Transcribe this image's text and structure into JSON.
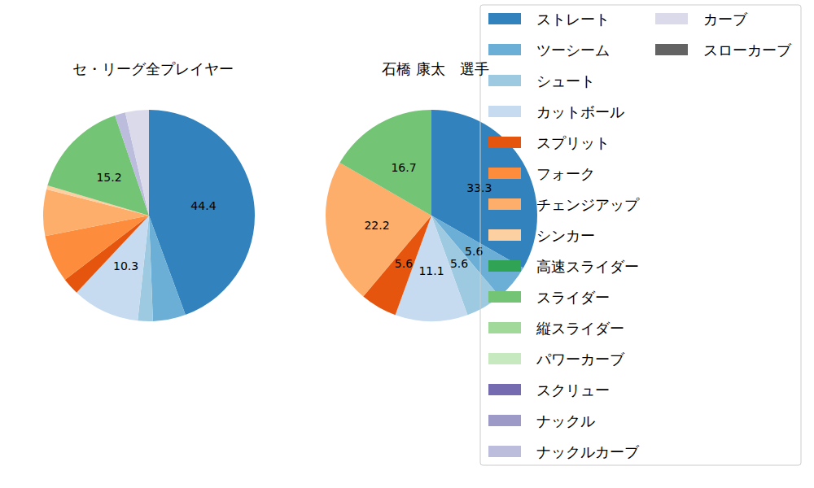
{
  "chart_data": [
    {
      "type": "pie",
      "title": "セ・リーグ全プレイヤー",
      "categories": [
        "ストレート",
        "ツーシーム",
        "シュート",
        "カットボール",
        "スプリット",
        "フォーク",
        "チェンジアップ",
        "シンカー",
        "高速スライダー",
        "スライダー",
        "縦スライダー",
        "パワーカーブ",
        "スクリュー",
        "ナックル",
        "ナックルカーブ",
        "カーブ",
        "スローカーブ"
      ],
      "values": [
        44.4,
        5.0,
        2.3,
        10.3,
        2.6,
        7.3,
        7.1,
        0.6,
        0,
        15.2,
        0,
        0,
        0,
        0,
        1.6,
        3.6,
        0
      ],
      "value_labels": [
        "44.4",
        null,
        null,
        "10.3",
        null,
        null,
        null,
        null,
        null,
        "15.2",
        null,
        null,
        null,
        null,
        null,
        null,
        null
      ],
      "colors": [
        "#3182bd",
        "#6baed6",
        "#9ecae1",
        "#c6dbef",
        "#e6550d",
        "#fd8d3c",
        "#fdae6b",
        "#fdd0a2",
        "#31a354",
        "#74c476",
        "#a1d99b",
        "#c7e9c0",
        "#756bb1",
        "#9e9ac8",
        "#bcbddc",
        "#dadaeb",
        "#636363"
      ],
      "data_labels": true
    },
    {
      "type": "pie",
      "title": "石橋 康太　選手",
      "categories": [
        "ストレート",
        "ツーシーム",
        "シュート",
        "カットボール",
        "スプリット",
        "フォーク",
        "チェンジアップ",
        "シンカー",
        "高速スライダー",
        "スライダー",
        "縦スライダー",
        "パワーカーブ",
        "スクリュー",
        "ナックル",
        "ナックルカーブ",
        "カーブ",
        "スローカーブ"
      ],
      "values": [
        33.3,
        5.6,
        5.6,
        11.1,
        5.6,
        0,
        22.2,
        0,
        0,
        16.7,
        0,
        0,
        0,
        0,
        0,
        0,
        0
      ],
      "value_labels": [
        "33.3",
        "5.6",
        "5.6",
        "11.1",
        "5.6",
        null,
        "22.2",
        null,
        null,
        "16.7",
        null,
        null,
        null,
        null,
        null,
        null,
        null
      ],
      "colors": [
        "#3182bd",
        "#6baed6",
        "#9ecae1",
        "#c6dbef",
        "#e6550d",
        "#fd8d3c",
        "#fdae6b",
        "#fdd0a2",
        "#31a354",
        "#74c476",
        "#a1d99b",
        "#c7e9c0",
        "#756bb1",
        "#9e9ac8",
        "#bcbddc",
        "#dadaeb",
        "#636363"
      ],
      "data_labels": true,
      "legend": "right"
    }
  ]
}
